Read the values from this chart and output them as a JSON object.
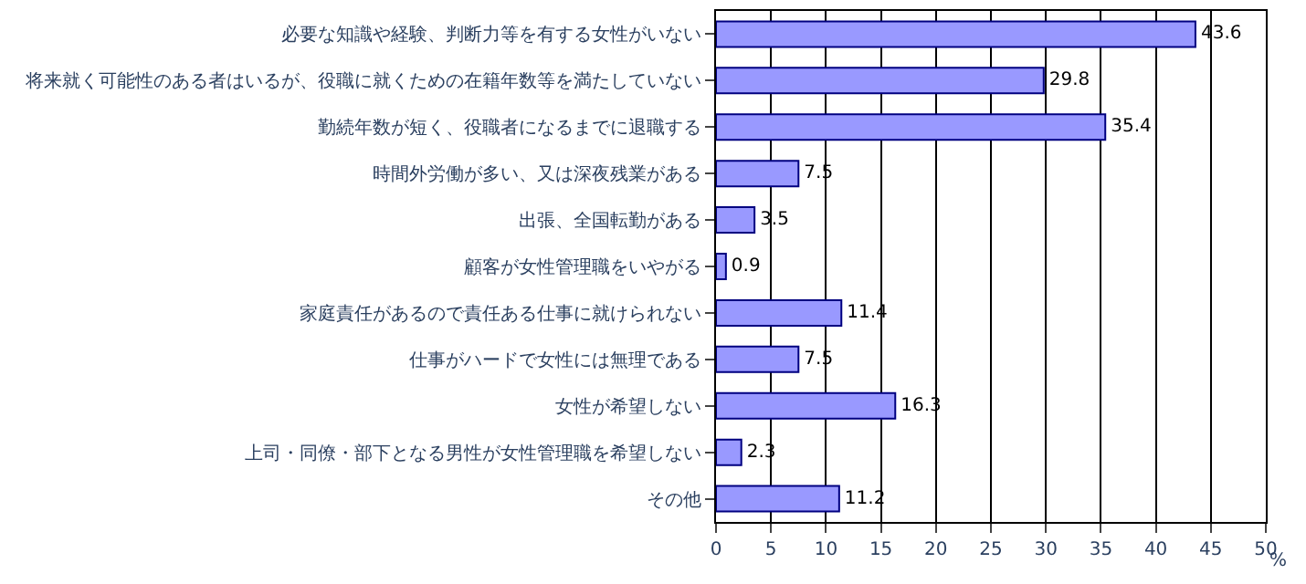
{
  "chart_data": {
    "type": "bar",
    "orientation": "horizontal",
    "xlabel": "%",
    "categories": [
      "必要な知識や経験、判断力等を有する女性がいない",
      "将来就く可能性のある者はいるが、役職に就くための在籍年数等を満たしていない",
      "勤続年数が短く、役職者になるまでに退職する",
      "時間外労働が多い、又は深夜残業がある",
      "出張、全国転勤がある",
      "顧客が女性管理職をいやがる",
      "家庭責任があるので責任ある仕事に就けられない",
      "仕事がハードで女性には無理である",
      "女性が希望しない",
      "上司・同僚・部下となる男性が女性管理職を希望しない",
      "その他"
    ],
    "values": [
      43.6,
      29.8,
      35.4,
      7.5,
      3.5,
      0.9,
      11.4,
      7.5,
      16.3,
      2.3,
      11.2
    ],
    "color": "#9999ff",
    "xlim": [
      0,
      50
    ],
    "xticks": [
      0,
      5,
      10,
      15,
      20,
      25,
      30,
      35,
      40,
      45,
      50
    ],
    "grid": "x",
    "data_labels": true
  }
}
